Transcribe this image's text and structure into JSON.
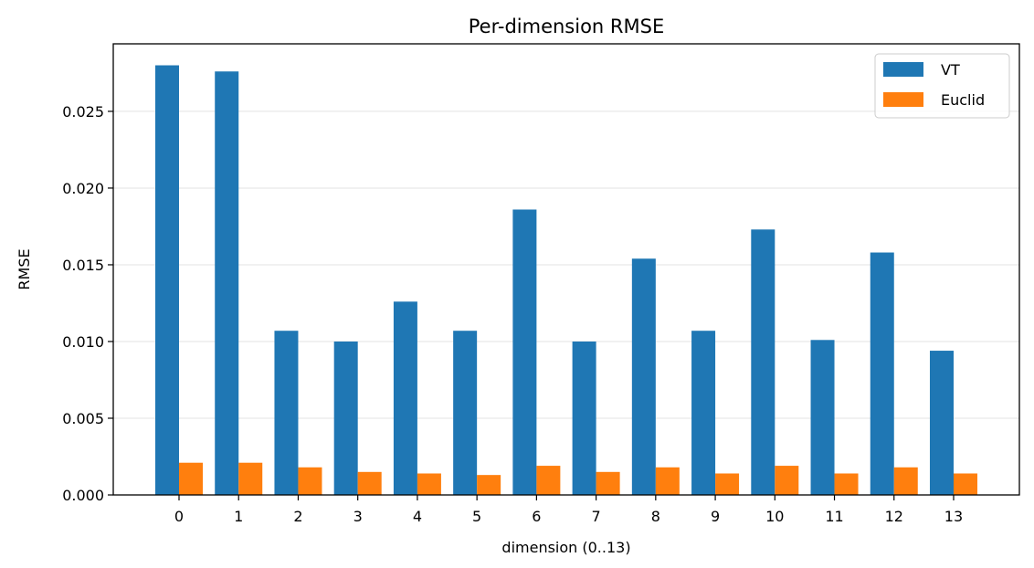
{
  "chart_data": {
    "type": "bar",
    "title": "Per-dimension RMSE",
    "xlabel": "dimension (0..13)",
    "ylabel": "RMSE",
    "categories": [
      "0",
      "1",
      "2",
      "3",
      "4",
      "5",
      "6",
      "7",
      "8",
      "9",
      "10",
      "11",
      "12",
      "13"
    ],
    "series": [
      {
        "name": "VT",
        "color": "#1f77b4",
        "values": [
          0.028,
          0.0276,
          0.0107,
          0.01,
          0.0126,
          0.0107,
          0.0186,
          0.01,
          0.0154,
          0.0107,
          0.0173,
          0.0101,
          0.0158,
          0.0094
        ]
      },
      {
        "name": "Euclid",
        "color": "#ff7f0e",
        "values": [
          0.0021,
          0.0021,
          0.0018,
          0.0015,
          0.0014,
          0.0013,
          0.0019,
          0.0015,
          0.0018,
          0.0014,
          0.0019,
          0.0014,
          0.0018,
          0.0014
        ]
      }
    ],
    "ylim": [
      0,
      0.0294
    ],
    "yticks": [
      "0.000",
      "0.005",
      "0.010",
      "0.015",
      "0.020",
      "0.025"
    ],
    "ytick_values": [
      0,
      0.005,
      0.01,
      0.015,
      0.02,
      0.025
    ],
    "grid": "horizontal",
    "legend": "top-right"
  }
}
